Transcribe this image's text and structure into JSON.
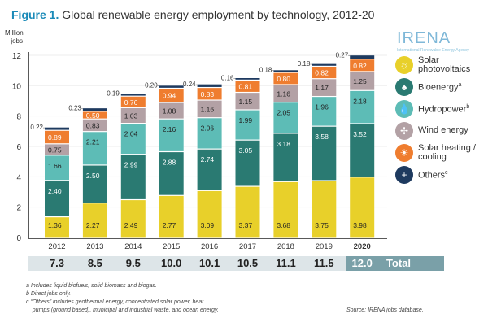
{
  "header": {
    "figure_label": "Figure 1.",
    "title": "Global renewable energy employment by technology, 2012-20"
  },
  "logo": {
    "name": "IRENA",
    "tagline": "International Renewable Energy Agency"
  },
  "chart_data": {
    "type": "bar",
    "stacked": true,
    "title": "Global renewable energy employment by technology, 2012-20",
    "ylabel": "Million jobs",
    "ylim": [
      0,
      12
    ],
    "yticks": [
      0,
      2,
      4,
      6,
      8,
      10,
      12
    ],
    "grid": true,
    "categories": [
      "2012",
      "2013",
      "2014",
      "2015",
      "2016",
      "2017",
      "2018",
      "2019",
      "2020"
    ],
    "series": [
      {
        "name": "Solar photovoltaics",
        "color": "#e8d02a",
        "values": [
          1.36,
          2.27,
          2.49,
          2.77,
          3.09,
          3.37,
          3.68,
          3.75,
          3.98
        ]
      },
      {
        "name": "Bioenergy",
        "sup": "a",
        "color": "#2a7a72",
        "values": [
          2.4,
          2.5,
          2.99,
          2.88,
          2.74,
          3.05,
          3.18,
          3.58,
          3.52
        ]
      },
      {
        "name": "Hydropower",
        "sup": "b",
        "color": "#5dbcb6",
        "values": [
          1.66,
          2.21,
          2.04,
          2.16,
          2.06,
          1.99,
          2.05,
          1.96,
          2.18
        ]
      },
      {
        "name": "Wind energy",
        "color": "#b3a1a5",
        "values": [
          0.75,
          0.83,
          1.03,
          1.08,
          1.16,
          1.15,
          1.16,
          1.17,
          1.25
        ]
      },
      {
        "name": "Solar heating / cooling",
        "color": "#ef7d2f",
        "values": [
          0.89,
          0.5,
          0.76,
          0.94,
          0.83,
          0.81,
          0.8,
          0.82,
          0.82
        ]
      },
      {
        "name": "Others",
        "sup": "c",
        "color": "#1e3a5f",
        "values": [
          0.22,
          0.23,
          0.19,
          0.2,
          0.24,
          0.16,
          0.18,
          0.18,
          0.27
        ]
      }
    ],
    "totals": [
      "7.3",
      "8.5",
      "9.5",
      "10.0",
      "10.1",
      "10.5",
      "11.1",
      "11.5",
      "12.0"
    ],
    "total_label": "Total",
    "legend_placement": "right"
  },
  "notes": [
    "a  Includes liquid biofuels, solid biomass and biogas.",
    "b  Direct jobs only.",
    "c  “Others” includes geothermal energy, concentrated solar power, heat",
    "    pumps (ground based), municipal and industrial waste, and ocean energy."
  ],
  "source": "Source: IRENA jobs database."
}
